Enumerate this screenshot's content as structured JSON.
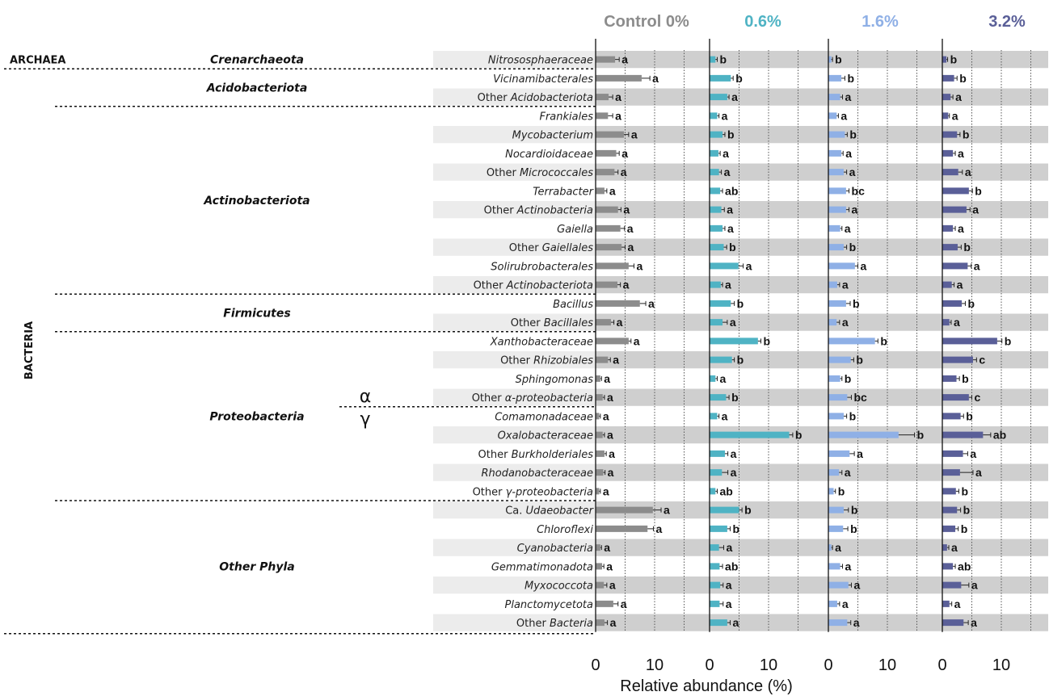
{
  "chart_data": {
    "type": "bar",
    "orientation": "horizontal",
    "xlabel": "Relative abundance (%)",
    "xlim": [
      0,
      18
    ],
    "xticks": [
      0,
      10
    ],
    "grid": true,
    "panels": [
      {
        "name": "Control 0%",
        "color": "#8c8c8c"
      },
      {
        "name": "0.6%",
        "color": "#4fb3c4"
      },
      {
        "name": "1.6%",
        "color": "#8fb0e6"
      },
      {
        "name": "3.2%",
        "color": "#5a5f98"
      }
    ],
    "categories": [
      {
        "pre": "",
        "it": "Nitrososphaeraceae",
        "post": ""
      },
      {
        "pre": "",
        "it": "Vicinamibacterales",
        "post": ""
      },
      {
        "pre": "Other ",
        "it": "Acidobacteriota",
        "post": ""
      },
      {
        "pre": "",
        "it": "Frankiales",
        "post": ""
      },
      {
        "pre": "",
        "it": "Mycobacterium",
        "post": ""
      },
      {
        "pre": "",
        "it": "Nocardioidaceae",
        "post": ""
      },
      {
        "pre": "Other ",
        "it": "Micrococcales",
        "post": ""
      },
      {
        "pre": "",
        "it": "Terrabacter",
        "post": ""
      },
      {
        "pre": "Other ",
        "it": "Actinobacteria",
        "post": ""
      },
      {
        "pre": "",
        "it": "Gaiella",
        "post": ""
      },
      {
        "pre": "Other ",
        "it": "Gaiellales",
        "post": ""
      },
      {
        "pre": "",
        "it": "Solirubrobacterales",
        "post": ""
      },
      {
        "pre": "Other ",
        "it": "Actinobacteriota",
        "post": ""
      },
      {
        "pre": "",
        "it": "Bacillus",
        "post": ""
      },
      {
        "pre": "Other ",
        "it": "Bacillales",
        "post": ""
      },
      {
        "pre": "",
        "it": "Xanthobacteraceae",
        "post": ""
      },
      {
        "pre": "Other ",
        "it": "Rhizobiales",
        "post": ""
      },
      {
        "pre": "",
        "it": "Sphingomonas",
        "post": ""
      },
      {
        "pre": "Other ",
        "it": "α-proteobacteria",
        "post": ""
      },
      {
        "pre": "",
        "it": "Comamonadaceae",
        "post": ""
      },
      {
        "pre": "",
        "it": "Oxalobacteraceae",
        "post": ""
      },
      {
        "pre": "Other ",
        "it": "Burkholderiales",
        "post": ""
      },
      {
        "pre": "",
        "it": "Rhodanobacteraceae",
        "post": ""
      },
      {
        "pre": "Other ",
        "it": "γ-proteobacteria",
        "post": ""
      },
      {
        "pre": "Ca. ",
        "it": "Udaeobacter",
        "post": ""
      },
      {
        "pre": "",
        "it": "Chloroflexi",
        "post": ""
      },
      {
        "pre": "",
        "it": "Cyanobacteria",
        "post": ""
      },
      {
        "pre": "",
        "it": "Gemmatimonadota",
        "post": ""
      },
      {
        "pre": "",
        "it": "Myxococcota",
        "post": ""
      },
      {
        "pre": "",
        "it": "Planctomycetota",
        "post": ""
      },
      {
        "pre": "Other ",
        "it": "Bacteria",
        "post": ""
      }
    ],
    "series": [
      {
        "name": "Control 0%",
        "values": [
          3.3,
          7.8,
          2.2,
          2.1,
          4.8,
          3.5,
          3.2,
          1.5,
          3.8,
          4.2,
          4.4,
          5.6,
          3.7,
          7.5,
          2.6,
          5.6,
          2.1,
          0.8,
          1.2,
          0.6,
          1.2,
          1.5,
          1.3,
          0.6,
          9.7,
          8.8,
          0.8,
          1.1,
          1.4,
          3.0,
          1.5
        ],
        "errors": [
          0.7,
          1.4,
          0.7,
          0.8,
          0.8,
          0.5,
          0.6,
          0.4,
          0.5,
          0.7,
          0.6,
          0.9,
          0.5,
          1.0,
          0.5,
          0.4,
          0.4,
          0.2,
          0.3,
          0.2,
          0.3,
          0.3,
          0.3,
          0.2,
          1.4,
          1.0,
          0.2,
          0.3,
          0.5,
          0.8,
          0.5
        ],
        "letters": [
          "a",
          "a",
          "a",
          "a",
          "a",
          "a",
          "a",
          "a",
          "a",
          "a",
          "a",
          "a",
          "a",
          "a",
          "a",
          "a",
          "a",
          "a",
          "a",
          "a",
          "a",
          "a",
          "a",
          "a",
          "a",
          "a",
          "a",
          "a",
          "a",
          "a",
          "a"
        ]
      },
      {
        "name": "0.6%",
        "values": [
          1.0,
          3.6,
          3.0,
          1.3,
          2.2,
          1.5,
          1.6,
          1.8,
          2.0,
          2.2,
          2.4,
          4.9,
          1.9,
          3.6,
          2.2,
          8.2,
          3.8,
          1.0,
          2.8,
          1.3,
          13.5,
          2.6,
          2.1,
          1.0,
          5.0,
          3.0,
          1.6,
          1.7,
          1.8,
          1.7,
          3.0
        ],
        "errors": [
          0.3,
          0.4,
          0.3,
          0.3,
          0.4,
          0.3,
          0.4,
          0.4,
          0.5,
          0.4,
          0.5,
          0.8,
          0.3,
          0.6,
          0.8,
          0.5,
          0.4,
          0.3,
          0.5,
          0.3,
          0.6,
          0.5,
          1.0,
          0.3,
          0.5,
          0.5,
          0.8,
          0.5,
          0.5,
          0.6,
          0.5
        ],
        "letters": [
          "b",
          "b",
          "a",
          "a",
          "b",
          "a",
          "a",
          "ab",
          "a",
          "a",
          "b",
          "a",
          "a",
          "b",
          "a",
          "b",
          "b",
          "a",
          "b",
          "a",
          "b",
          "a",
          "a",
          "ab",
          "b",
          "b",
          "a",
          "ab",
          "a",
          "a",
          "a"
        ]
      },
      {
        "name": "1.6%",
        "values": [
          0.5,
          2.2,
          2.0,
          1.4,
          2.8,
          2.2,
          2.6,
          3.0,
          3.0,
          2.0,
          2.6,
          4.5,
          1.5,
          3.0,
          1.4,
          7.9,
          3.8,
          2.0,
          3.2,
          2.6,
          11.9,
          3.6,
          1.8,
          0.9,
          2.6,
          2.5,
          0.5,
          2.0,
          3.4,
          1.5,
          3.2
        ],
        "errors": [
          0.2,
          0.6,
          0.4,
          0.3,
          0.4,
          0.3,
          0.5,
          0.5,
          0.5,
          0.3,
          0.5,
          0.5,
          0.4,
          0.7,
          0.5,
          0.5,
          0.5,
          0.3,
          0.7,
          0.5,
          2.7,
          0.8,
          0.5,
          0.3,
          0.8,
          0.8,
          0.2,
          0.4,
          0.5,
          0.4,
          0.6
        ],
        "letters": [
          "b",
          "b",
          "a",
          "a",
          "b",
          "a",
          "a",
          "bc",
          "a",
          "a",
          "b",
          "a",
          "a",
          "b",
          "a",
          "b",
          "b",
          "b",
          "bc",
          "b",
          "b",
          "a",
          "a",
          "b",
          "b",
          "b",
          "a",
          "a",
          "a",
          "a",
          "a"
        ]
      },
      {
        "name": "3.2%",
        "values": [
          0.7,
          2.0,
          1.4,
          1.0,
          2.5,
          1.8,
          2.7,
          4.5,
          4.1,
          1.8,
          2.6,
          4.3,
          1.6,
          3.3,
          1.2,
          9.3,
          5.2,
          2.4,
          4.5,
          3.1,
          6.9,
          3.5,
          3.0,
          2.3,
          2.5,
          2.2,
          0.8,
          1.8,
          3.2,
          1.2,
          3.6
        ],
        "errors": [
          0.2,
          0.5,
          0.4,
          0.2,
          0.5,
          0.4,
          0.7,
          0.6,
          0.6,
          0.4,
          0.6,
          0.6,
          0.4,
          0.6,
          0.3,
          0.8,
          0.6,
          0.5,
          0.5,
          0.5,
          1.3,
          0.8,
          2.2,
          0.5,
          0.6,
          0.5,
          0.3,
          0.4,
          1.3,
          0.4,
          0.8
        ],
        "letters": [
          "b",
          "b",
          "a",
          "a",
          "b",
          "a",
          "a",
          "b",
          "a",
          "a",
          "b",
          "a",
          "a",
          "b",
          "a",
          "b",
          "c",
          "b",
          "c",
          "b",
          "ab",
          "a",
          "a",
          "b",
          "b",
          "b",
          "a",
          "ab",
          "a",
          "a",
          "a"
        ]
      }
    ],
    "groups": {
      "domains": [
        {
          "label": "ARCHAEA",
          "first": 0,
          "last": 0
        },
        {
          "label": "BACTERIA",
          "first": 1,
          "last": 30
        }
      ],
      "phyla": [
        {
          "label": "Crenarchaeota",
          "first": 0,
          "last": 0
        },
        {
          "label": "Acidobacteriota",
          "first": 1,
          "last": 2
        },
        {
          "label": "Actinobacteriota",
          "first": 3,
          "last": 12
        },
        {
          "label": "Firmicutes",
          "first": 13,
          "last": 14
        },
        {
          "label": "Proteobacteria",
          "first": 15,
          "last": 23
        },
        {
          "label": "Other Phyla",
          "first": 24,
          "last": 30
        }
      ],
      "subclasses": [
        {
          "label": "α",
          "first": 15,
          "last": 18
        },
        {
          "label": "γ",
          "first": 19,
          "last": 23
        }
      ]
    }
  }
}
